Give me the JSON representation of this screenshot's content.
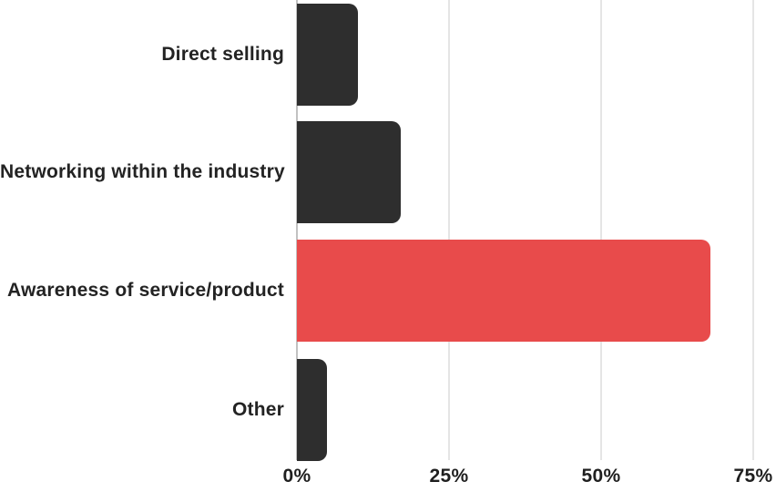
{
  "chart_data": {
    "type": "bar",
    "orientation": "horizontal",
    "categories": [
      "Direct selling",
      "Networking within the industry",
      "Awareness of service/product",
      "Other"
    ],
    "values": [
      10,
      17,
      68,
      5
    ],
    "value_unit": "%",
    "x_tick_labels": [
      "0%",
      "25%",
      "50%",
      "75%"
    ],
    "x_tick_values": [
      0,
      25,
      50,
      75
    ],
    "xlim": [
      0,
      78.8
    ],
    "grid": "vertical-only",
    "legend": "none",
    "bar_colors": [
      "#2e2e2e",
      "#2e2e2e",
      "#e84b4b",
      "#2e2e2e"
    ],
    "highlighted_category": "Awareness of service/product"
  },
  "colors": {
    "background": "#ffffff",
    "bar_default": "#2e2e2e",
    "bar_highlight": "#e84b4b",
    "gridline": "#e5e5e5",
    "axis_line": "#c2c2c2",
    "text": "#232323"
  }
}
